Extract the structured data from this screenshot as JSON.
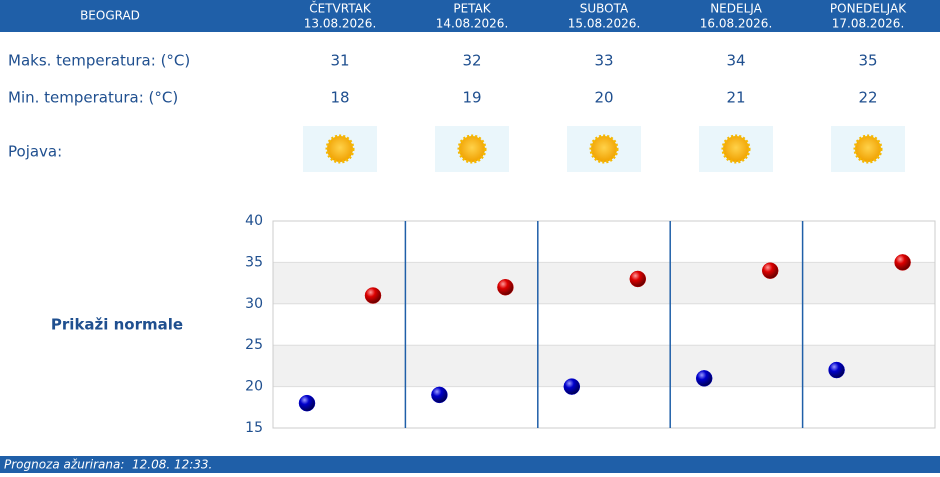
{
  "header": {
    "city": "BEOGRAD",
    "days": [
      {
        "name": "ČETVRTAK",
        "date": "13.08.2026."
      },
      {
        "name": "PETAK",
        "date": "14.08.2026."
      },
      {
        "name": "SUBOTA",
        "date": "15.08.2026."
      },
      {
        "name": "NEDELJA",
        "date": "16.08.2026."
      },
      {
        "name": "PONEDELJAK",
        "date": "17.08.2026."
      }
    ]
  },
  "rows": {
    "max_label": "Maks. temperatura: (°C)",
    "min_label": "Min. temperatura: (°C)",
    "phenomenon_label": "Pojava:"
  },
  "button": "Prikaži normale",
  "chart_data": {
    "type": "scatter",
    "series": [
      {
        "color": "#cc0000",
        "values": [
          31,
          32,
          33,
          34,
          35
        ]
      },
      {
        "color": "#0000cc",
        "values": [
          18,
          19,
          20,
          21,
          22
        ]
      }
    ],
    "ylim": [
      15,
      40
    ],
    "yticks": [
      15,
      20,
      25,
      30,
      35,
      40
    ],
    "grid": true
  },
  "footer": "Prognoza ažurirana:  12.08. 12:33."
}
